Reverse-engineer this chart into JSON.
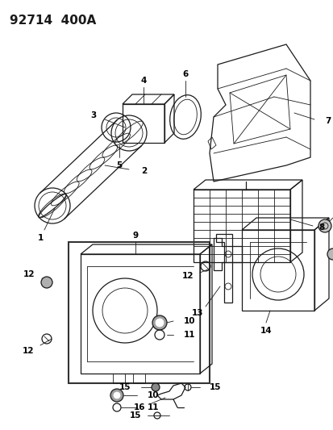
{
  "title": "92714  400A",
  "bg_color": "#ffffff",
  "line_color": "#1a1a1a",
  "fig_width": 4.14,
  "fig_height": 5.33,
  "dpi": 100,
  "title_fontsize": 11,
  "label_fontsize": 7.5
}
